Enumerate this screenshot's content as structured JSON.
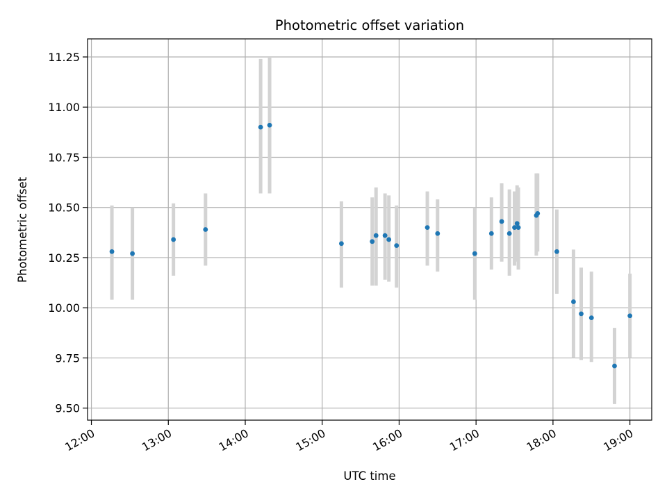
{
  "chart_data": {
    "type": "scatter",
    "title": "Photometric offset variation",
    "xlabel": "UTC time",
    "ylabel": "Photometric offset",
    "x_is_time": true,
    "xlim": [
      "11:57",
      "19:17"
    ],
    "ylim": [
      9.44,
      11.34
    ],
    "x_ticks": [
      "12:00",
      "13:00",
      "14:00",
      "15:00",
      "16:00",
      "17:00",
      "18:00",
      "19:00"
    ],
    "y_ticks": [
      "9.50",
      "9.75",
      "10.00",
      "10.25",
      "10.50",
      "10.75",
      "11.00",
      "11.25"
    ],
    "grid": true,
    "colors": {
      "points": "#1f77b4",
      "errorbars": "#d3d3d3",
      "grid": "#b0b0b0"
    },
    "points": [
      {
        "t": "12:16",
        "y": 10.28,
        "lo": 10.04,
        "hi": 10.51
      },
      {
        "t": "12:32",
        "y": 10.27,
        "lo": 10.04,
        "hi": 10.5
      },
      {
        "t": "13:04",
        "y": 10.34,
        "lo": 10.16,
        "hi": 10.52
      },
      {
        "t": "13:29",
        "y": 10.39,
        "lo": 10.21,
        "hi": 10.57
      },
      {
        "t": "14:12",
        "y": 10.9,
        "lo": 10.57,
        "hi": 11.24
      },
      {
        "t": "14:19",
        "y": 10.91,
        "lo": 10.57,
        "hi": 11.25
      },
      {
        "t": "15:15",
        "y": 10.32,
        "lo": 10.1,
        "hi": 10.53
      },
      {
        "t": "15:39",
        "y": 10.33,
        "lo": 10.11,
        "hi": 10.55
      },
      {
        "t": "15:42",
        "y": 10.36,
        "lo": 10.11,
        "hi": 10.6
      },
      {
        "t": "15:49",
        "y": 10.36,
        "lo": 10.14,
        "hi": 10.57
      },
      {
        "t": "15:52",
        "y": 10.34,
        "lo": 10.13,
        "hi": 10.56
      },
      {
        "t": "15:58",
        "y": 10.31,
        "lo": 10.1,
        "hi": 10.51
      },
      {
        "t": "16:22",
        "y": 10.4,
        "lo": 10.21,
        "hi": 10.58
      },
      {
        "t": "16:30",
        "y": 10.37,
        "lo": 10.18,
        "hi": 10.54
      },
      {
        "t": "16:59",
        "y": 10.27,
        "lo": 10.04,
        "hi": 10.5
      },
      {
        "t": "17:12",
        "y": 10.37,
        "lo": 10.19,
        "hi": 10.55
      },
      {
        "t": "17:20",
        "y": 10.43,
        "lo": 10.23,
        "hi": 10.62
      },
      {
        "t": "17:26",
        "y": 10.37,
        "lo": 10.16,
        "hi": 10.59
      },
      {
        "t": "17:30",
        "y": 10.4,
        "lo": 10.21,
        "hi": 10.58
      },
      {
        "t": "17:32",
        "y": 10.42,
        "lo": 10.23,
        "hi": 10.61
      },
      {
        "t": "17:33",
        "y": 10.4,
        "lo": 10.19,
        "hi": 10.6
      },
      {
        "t": "17:47",
        "y": 10.46,
        "lo": 10.26,
        "hi": 10.67
      },
      {
        "t": "17:48",
        "y": 10.47,
        "lo": 10.28,
        "hi": 10.67
      },
      {
        "t": "18:03",
        "y": 10.28,
        "lo": 10.07,
        "hi": 10.49
      },
      {
        "t": "18:16",
        "y": 10.03,
        "lo": 9.75,
        "hi": 10.29
      },
      {
        "t": "18:22",
        "y": 9.97,
        "lo": 9.74,
        "hi": 10.2
      },
      {
        "t": "18:30",
        "y": 9.95,
        "lo": 9.73,
        "hi": 10.18
      },
      {
        "t": "18:48",
        "y": 9.71,
        "lo": 9.52,
        "hi": 9.9
      },
      {
        "t": "19:00",
        "y": 9.96,
        "lo": 9.75,
        "hi": 10.17
      }
    ]
  }
}
